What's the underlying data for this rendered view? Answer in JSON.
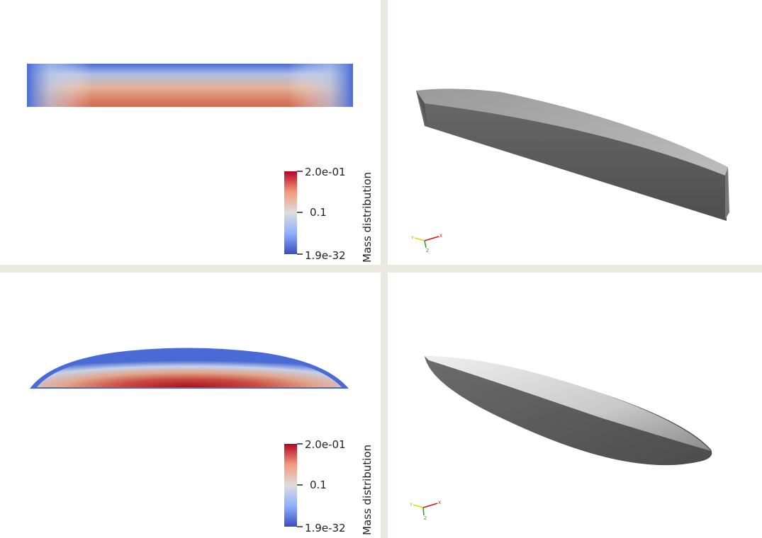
{
  "colorbar": {
    "title": "Mass distribution",
    "max_label": "2.0e-01",
    "mid_label": "0.1",
    "min_label": "1.9e-32",
    "colors": {
      "high": "#b40426",
      "mid": "#dddddd",
      "low": "#3b4cc0"
    }
  },
  "views": {
    "top_left": {
      "colorbar": {
        "title": "Mass distribution",
        "max_label": "2.0e-01",
        "mid_label": "0.1",
        "min_label": "1.9e-32"
      }
    },
    "bottom_left": {
      "colorbar": {
        "title": "Mass distribution",
        "max_label": "2.0e-01",
        "mid_label": "0.1",
        "min_label": "1.9e-32"
      }
    }
  },
  "orientation_axes": {
    "x_label": "X",
    "y_label": "Y",
    "z_label": "Z"
  },
  "colors": {
    "background": "#ffffff",
    "divider": "#ebe8e2",
    "hull_dark": "#595959",
    "hull_light": "#c8c8c8"
  }
}
